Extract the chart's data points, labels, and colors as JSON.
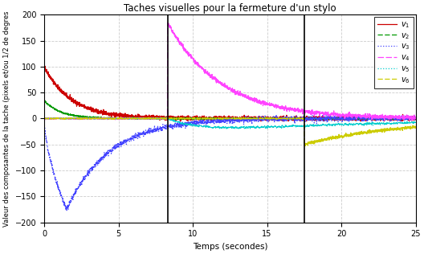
{
  "title": "Taches visuelles pour la fermeture d'un stylo",
  "xlabel": "Temps (secondes)",
  "ylabel": "Valeur des composantes de la tache (pixels et/ou 1/2 de degres",
  "xlim": [
    0,
    25
  ],
  "ylim": [
    -200,
    200
  ],
  "xticks": [
    0,
    5,
    10,
    15,
    20,
    25
  ],
  "yticks": [
    -200,
    -150,
    -100,
    -50,
    0,
    50,
    100,
    150,
    200
  ],
  "vlines": [
    8.3,
    17.5
  ],
  "colors": {
    "v1": "#cc0000",
    "v2": "#009900",
    "v3": "#4444ff",
    "v4": "#ff44ff",
    "v5": "#00cccc",
    "v6": "#cccc00"
  },
  "background_color": "#ffffff",
  "grid_color": "#cccccc"
}
